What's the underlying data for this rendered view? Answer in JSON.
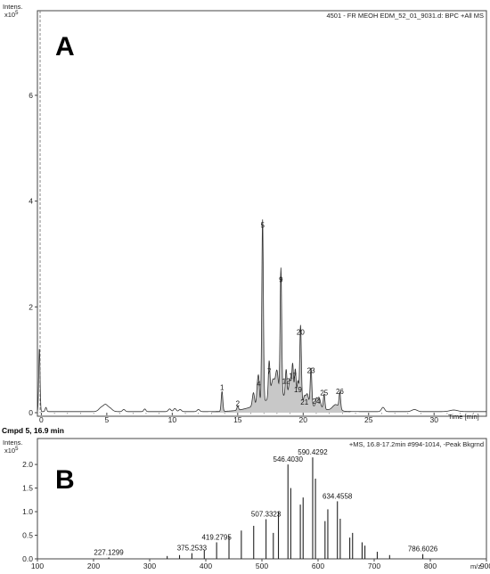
{
  "chart_data": [
    {
      "type": "line",
      "panel_label": "A",
      "header": "4501 - FR MEOH EDM_52_01_9031.d: BPC +All MS",
      "ylabel": "Intens.",
      "y_exponent": "x10^5",
      "y_exponent_text": "x10",
      "y_exponent_power": "5",
      "xlabel": "Time [min]",
      "xlim": [
        -0.3,
        34
      ],
      "ylim": [
        0,
        7.6
      ],
      "x_ticks": [
        0,
        5,
        10,
        15,
        20,
        25,
        30
      ],
      "y_ticks": [
        0,
        2,
        4,
        6
      ],
      "peaks": [
        {
          "label": "1",
          "x": 13.8,
          "y": 0.38
        },
        {
          "label": "2",
          "x": 15.0,
          "y": 0.08
        },
        {
          "label": "4",
          "x": 16.6,
          "y": 0.45
        },
        {
          "label": "5",
          "x": 16.9,
          "y": 3.45
        },
        {
          "label": "7",
          "x": 17.4,
          "y": 0.68
        },
        {
          "label": "9",
          "x": 18.3,
          "y": 2.42
        },
        {
          "label": "12",
          "x": 18.7,
          "y": 0.5
        },
        {
          "label": "17",
          "x": 19.2,
          "y": 0.6
        },
        {
          "label": "19",
          "x": 19.6,
          "y": 0.34
        },
        {
          "label": "20",
          "x": 19.8,
          "y": 1.42
        },
        {
          "label": "21",
          "x": 20.1,
          "y": 0.1
        },
        {
          "label": "23",
          "x": 20.6,
          "y": 0.7
        },
        {
          "label": "24",
          "x": 21.0,
          "y": 0.12
        },
        {
          "label": "25",
          "x": 21.6,
          "y": 0.28
        },
        {
          "label": "26",
          "x": 22.8,
          "y": 0.3
        }
      ]
    },
    {
      "type": "bar",
      "panel_label": "B",
      "title": "Cmpd 5, 16.9 min",
      "header": "+MS, 16.8-17.2min #994-1014, -Peak Bkgrnd",
      "ylabel": "Intens.",
      "y_exponent": "x10^5",
      "y_exponent_text": "x10",
      "y_exponent_power": "5",
      "xlabel": "m/z",
      "xlim": [
        100,
        900
      ],
      "ylim": [
        0,
        2.55
      ],
      "x_ticks": [
        100,
        200,
        300,
        400,
        500,
        600,
        700,
        800,
        900
      ],
      "y_ticks": [
        0.0,
        0.5,
        1.0,
        1.5,
        2.0
      ],
      "labeled_peaks": [
        {
          "mz": 227.1299,
          "label": "227.1299",
          "intensity": 0.03
        },
        {
          "mz": 375.2533,
          "label": "375.2533",
          "intensity": 0.12
        },
        {
          "mz": 419.2795,
          "label": "419.2795",
          "intensity": 0.35
        },
        {
          "mz": 507.3323,
          "label": "507.3323",
          "intensity": 0.84
        },
        {
          "mz": 546.403,
          "label": "546.4030",
          "intensity": 2.0
        },
        {
          "mz": 590.4292,
          "label": "590.4292",
          "intensity": 2.15
        },
        {
          "mz": 634.4558,
          "label": "634.4558",
          "intensity": 1.22
        },
        {
          "mz": 786.6026,
          "label": "786.6026",
          "intensity": 0.1
        }
      ],
      "other_peaks": [
        {
          "mz": 331.2,
          "intensity": 0.06
        },
        {
          "mz": 353.2,
          "intensity": 0.08
        },
        {
          "mz": 397.3,
          "intensity": 0.18
        },
        {
          "mz": 441.3,
          "intensity": 0.48
        },
        {
          "mz": 463.3,
          "intensity": 0.6
        },
        {
          "mz": 485.3,
          "intensity": 0.7
        },
        {
          "mz": 520.3,
          "intensity": 0.55
        },
        {
          "mz": 529.4,
          "intensity": 1.0
        },
        {
          "mz": 551.4,
          "intensity": 1.5
        },
        {
          "mz": 568.4,
          "intensity": 1.15
        },
        {
          "mz": 573.4,
          "intensity": 1.3
        },
        {
          "mz": 595.4,
          "intensity": 1.7
        },
        {
          "mz": 612.4,
          "intensity": 0.8
        },
        {
          "mz": 617.4,
          "intensity": 1.05
        },
        {
          "mz": 639.5,
          "intensity": 0.85
        },
        {
          "mz": 656.5,
          "intensity": 0.45
        },
        {
          "mz": 661.5,
          "intensity": 0.55
        },
        {
          "mz": 678.5,
          "intensity": 0.35
        },
        {
          "mz": 683.5,
          "intensity": 0.28
        },
        {
          "mz": 705.5,
          "intensity": 0.15
        },
        {
          "mz": 727.5,
          "intensity": 0.08
        }
      ]
    }
  ]
}
